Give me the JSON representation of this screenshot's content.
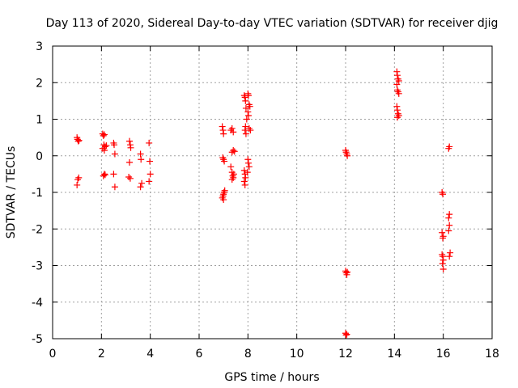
{
  "chart_data": {
    "type": "scatter",
    "title": "Day 113 of 2020, Sidereal Day-to-day VTEC variation (SDTVAR) for receiver djig",
    "xlabel": "GPS time / hours",
    "ylabel": "SDTVAR / TECUs",
    "xlim": [
      0,
      18
    ],
    "ylim": [
      -5,
      3
    ],
    "xticks": [
      "0",
      "2",
      "4",
      "6",
      "8",
      "10",
      "12",
      "14",
      "16",
      "18"
    ],
    "yticks": [
      "-5",
      "-4",
      "-3",
      "-2",
      "-1",
      "0",
      "1",
      "2",
      "3"
    ],
    "grid": true,
    "marker": "+",
    "color": "#ff0000",
    "series": [
      {
        "name": "SDTVAR",
        "points": [
          [
            1.0,
            0.5
          ],
          [
            1.02,
            0.45
          ],
          [
            1.05,
            0.4
          ],
          [
            1.08,
            0.42
          ],
          [
            1.0,
            -0.8
          ],
          [
            1.03,
            -0.65
          ],
          [
            1.07,
            -0.6
          ],
          [
            2.05,
            0.6
          ],
          [
            2.08,
            0.55
          ],
          [
            2.12,
            0.58
          ],
          [
            2.1,
            0.3
          ],
          [
            2.15,
            0.25
          ],
          [
            2.05,
            0.2
          ],
          [
            2.2,
            0.28
          ],
          [
            2.12,
            0.15
          ],
          [
            2.08,
            -0.55
          ],
          [
            2.12,
            -0.5
          ],
          [
            2.15,
            -0.52
          ],
          [
            2.5,
            0.35
          ],
          [
            2.52,
            0.3
          ],
          [
            2.55,
            0.05
          ],
          [
            2.5,
            -0.5
          ],
          [
            2.55,
            -0.85
          ],
          [
            3.15,
            0.4
          ],
          [
            3.18,
            0.3
          ],
          [
            3.2,
            0.22
          ],
          [
            3.15,
            -0.18
          ],
          [
            3.12,
            -0.58
          ],
          [
            3.18,
            -0.62
          ],
          [
            3.6,
            0.05
          ],
          [
            3.62,
            -0.1
          ],
          [
            3.65,
            -0.75
          ],
          [
            3.6,
            -0.85
          ],
          [
            3.95,
            0.35
          ],
          [
            3.98,
            -0.15
          ],
          [
            4.0,
            -0.5
          ],
          [
            3.95,
            -0.7
          ],
          [
            6.95,
            0.8
          ],
          [
            6.98,
            0.7
          ],
          [
            7.0,
            0.6
          ],
          [
            6.97,
            -0.05
          ],
          [
            7.0,
            -0.1
          ],
          [
            7.03,
            -0.15
          ],
          [
            6.95,
            -1.15
          ],
          [
            6.98,
            -1.1
          ],
          [
            7.0,
            -1.05
          ],
          [
            7.02,
            -1.0
          ],
          [
            7.05,
            -0.95
          ],
          [
            7.0,
            -1.2
          ],
          [
            7.3,
            0.7
          ],
          [
            7.35,
            0.75
          ],
          [
            7.4,
            0.65
          ],
          [
            7.35,
            0.1
          ],
          [
            7.4,
            0.15
          ],
          [
            7.45,
            0.12
          ],
          [
            7.3,
            -0.3
          ],
          [
            7.35,
            -0.45
          ],
          [
            7.38,
            -0.55
          ],
          [
            7.4,
            -0.6
          ],
          [
            7.42,
            -0.5
          ],
          [
            7.35,
            -0.65
          ],
          [
            7.85,
            1.65
          ],
          [
            7.88,
            1.6
          ],
          [
            7.9,
            1.5
          ],
          [
            7.92,
            1.3
          ],
          [
            7.95,
            1.0
          ],
          [
            7.9,
            0.8
          ],
          [
            7.88,
            0.7
          ],
          [
            7.92,
            0.6
          ],
          [
            7.85,
            -0.4
          ],
          [
            7.88,
            -0.5
          ],
          [
            7.9,
            -0.6
          ],
          [
            7.85,
            -0.7
          ],
          [
            7.88,
            -0.8
          ],
          [
            8.0,
            1.7
          ],
          [
            8.02,
            1.65
          ],
          [
            8.05,
            1.4
          ],
          [
            8.08,
            1.35
          ],
          [
            8.0,
            1.2
          ],
          [
            8.02,
            1.1
          ],
          [
            8.05,
            0.75
          ],
          [
            8.1,
            0.7
          ],
          [
            8.0,
            -0.1
          ],
          [
            8.02,
            -0.2
          ],
          [
            8.05,
            -0.3
          ],
          [
            7.98,
            -0.45
          ],
          [
            12.0,
            0.15
          ],
          [
            12.02,
            0.1
          ],
          [
            12.05,
            0.05
          ],
          [
            12.07,
            0.0
          ],
          [
            12.0,
            -3.15
          ],
          [
            12.02,
            -3.2
          ],
          [
            12.05,
            -3.25
          ],
          [
            12.07,
            -3.18
          ],
          [
            12.0,
            -4.85
          ],
          [
            12.02,
            -4.9
          ],
          [
            12.05,
            -4.88
          ],
          [
            14.1,
            2.3
          ],
          [
            14.12,
            2.2
          ],
          [
            14.15,
            2.1
          ],
          [
            14.18,
            2.05
          ],
          [
            14.1,
            1.95
          ],
          [
            14.12,
            1.8
          ],
          [
            14.15,
            1.75
          ],
          [
            14.18,
            1.7
          ],
          [
            14.1,
            1.35
          ],
          [
            14.12,
            1.25
          ],
          [
            14.15,
            1.15
          ],
          [
            14.18,
            1.1
          ],
          [
            14.12,
            1.05
          ],
          [
            15.95,
            -1.0
          ],
          [
            15.98,
            -1.05
          ],
          [
            15.95,
            -2.1
          ],
          [
            15.98,
            -2.25
          ],
          [
            16.0,
            -2.2
          ],
          [
            15.95,
            -2.7
          ],
          [
            15.98,
            -2.75
          ],
          [
            16.0,
            -2.85
          ],
          [
            15.97,
            -2.95
          ],
          [
            16.0,
            -3.1
          ],
          [
            16.25,
            0.25
          ],
          [
            16.22,
            0.2
          ],
          [
            16.25,
            -1.6
          ],
          [
            16.22,
            -1.7
          ],
          [
            16.25,
            -1.9
          ],
          [
            16.22,
            -2.05
          ],
          [
            16.28,
            -2.65
          ],
          [
            16.25,
            -2.75
          ]
        ]
      }
    ]
  }
}
